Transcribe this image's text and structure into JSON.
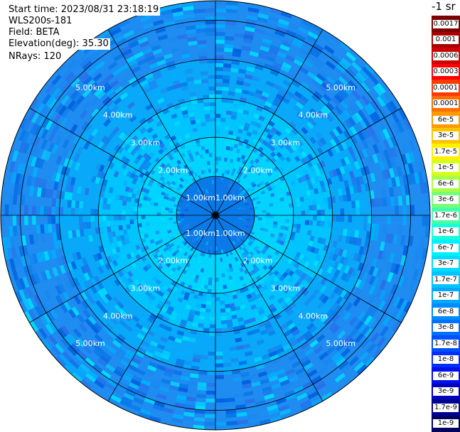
{
  "info": {
    "start_time": "Start time: 2023/08/31 23:18:19",
    "station": "WLS200s-181",
    "field": "Field: BETA",
    "elevation": "Elevation(deg): 35.30",
    "nrays": "NRays: 120"
  },
  "colorbar": {
    "unit": "-1 sr",
    "entries": [
      {
        "label": "0.0017",
        "color": "#7a0000"
      },
      {
        "label": "0.001",
        "color": "#a80000"
      },
      {
        "label": "0.0006",
        "color": "#cc0000"
      },
      {
        "label": "0.0003",
        "color": "#ff0000"
      },
      {
        "label": "0.00017",
        "color": "#ff3a00"
      },
      {
        "label": "0.0001",
        "color": "#ff6e00"
      },
      {
        "label": "6e-5",
        "color": "#ff9a00"
      },
      {
        "label": "3e-5",
        "color": "#ffc400"
      },
      {
        "label": "1.7e-5",
        "color": "#fff000"
      },
      {
        "label": "1e-5",
        "color": "#d8ff1a"
      },
      {
        "label": "6e-6",
        "color": "#a8ff48"
      },
      {
        "label": "3e-6",
        "color": "#78ff78"
      },
      {
        "label": "1.7e-6",
        "color": "#48ffa8"
      },
      {
        "label": "1e-6",
        "color": "#1affd8"
      },
      {
        "label": "6e-7",
        "color": "#00f0ff"
      },
      {
        "label": "3e-7",
        "color": "#00dcff"
      },
      {
        "label": "1.7e-7",
        "color": "#00c4ff"
      },
      {
        "label": "1e-7",
        "color": "#00a8ff"
      },
      {
        "label": "6e-8",
        "color": "#008cff"
      },
      {
        "label": "3e-8",
        "color": "#0070ff"
      },
      {
        "label": "1.7e-8",
        "color": "#0050ff"
      },
      {
        "label": "1e-8",
        "color": "#0030ff"
      },
      {
        "label": "6e-9",
        "color": "#0010e8"
      },
      {
        "label": "3e-9",
        "color": "#0000c0"
      },
      {
        "label": "1.7e-9",
        "color": "#000090"
      },
      {
        "label": "1e-9",
        "color": "#000060"
      }
    ]
  },
  "chart_data": {
    "type": "heatmap",
    "projection": "polar",
    "field": "BETA",
    "nrays": 120,
    "range_km": [
      0,
      5.5
    ],
    "range_rings_km": [
      1,
      2,
      3,
      4,
      5
    ],
    "ring_labels": [
      "1.00km",
      "2.00km",
      "3.00km",
      "4.00km",
      "5.00km"
    ],
    "spokes_deg": [
      0,
      30,
      60,
      90,
      120,
      150,
      180,
      210,
      240,
      270,
      300,
      330
    ],
    "range_bands": [
      {
        "from_km": 0.0,
        "to_km": 1.0,
        "color": "#0a7ae8"
      },
      {
        "from_km": 1.0,
        "to_km": 2.0,
        "color": "#00d4ff"
      },
      {
        "from_km": 2.0,
        "to_km": 3.0,
        "color": "#00c4ff"
      },
      {
        "from_km": 3.0,
        "to_km": 4.0,
        "color": "#0aa8f8"
      },
      {
        "from_km": 4.0,
        "to_km": 5.5,
        "color": "#1e8cf0"
      }
    ]
  }
}
